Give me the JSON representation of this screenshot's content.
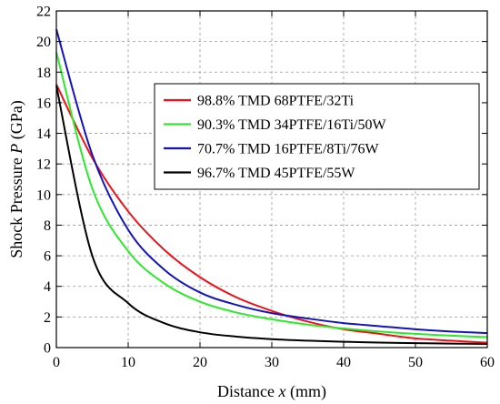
{
  "chart_data": {
    "type": "line",
    "xlabel_prefix": "Distance ",
    "xlabel_var": "x",
    "xlabel_suffix": " (mm)",
    "ylabel_prefix": "Shock Pressure ",
    "ylabel_var": "P",
    "ylabel_suffix": " (GPa)",
    "xlim": [
      0,
      60
    ],
    "ylim": [
      0,
      22
    ],
    "xticks": [
      0,
      10,
      20,
      30,
      40,
      50,
      60
    ],
    "yticks": [
      0,
      2,
      4,
      6,
      8,
      10,
      12,
      14,
      16,
      18,
      20,
      22
    ],
    "grid": true,
    "legend_position": "upper-right",
    "x": [
      0,
      5,
      10,
      15,
      20,
      25,
      30,
      35,
      40,
      45,
      50,
      55,
      60
    ],
    "series": [
      {
        "name": "98.8% TMD 68PTFE/32Ti",
        "color": "#e8131c",
        "values": [
          17.2,
          12.4,
          8.9,
          6.4,
          4.6,
          3.3,
          2.4,
          1.7,
          1.2,
          0.9,
          0.6,
          0.45,
          0.32
        ]
      },
      {
        "name": "90.3% TMD 34PTFE/16Ti/50W",
        "color": "#2ee82e",
        "values": [
          19.3,
          10.4,
          6.3,
          4.2,
          3.0,
          2.3,
          1.85,
          1.5,
          1.25,
          1.05,
          0.9,
          0.78,
          0.68
        ]
      },
      {
        "name": "70.7% TMD 16PTFE/8Ti/76W",
        "color": "#1414b4",
        "values": [
          20.8,
          12.6,
          7.7,
          5.1,
          3.6,
          2.8,
          2.25,
          1.9,
          1.6,
          1.4,
          1.2,
          1.05,
          0.95
        ]
      },
      {
        "name": "96.7% TMD 45PTFE/55W",
        "color": "#000000",
        "values": [
          17.1,
          6.0,
          2.9,
          1.6,
          1.0,
          0.72,
          0.55,
          0.45,
          0.38,
          0.33,
          0.29,
          0.26,
          0.24
        ]
      }
    ]
  }
}
